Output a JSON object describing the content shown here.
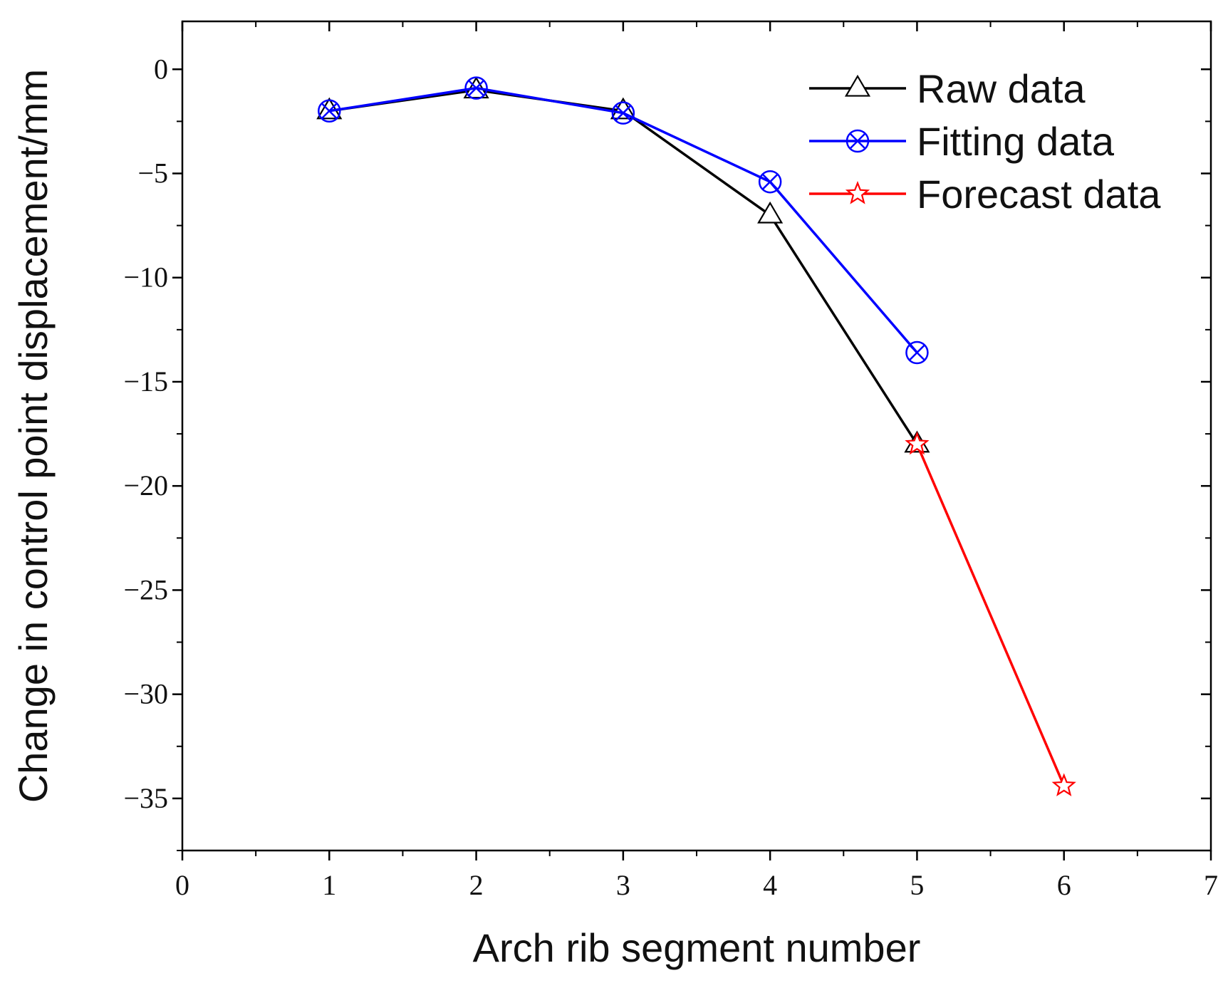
{
  "chart_data": {
    "type": "line",
    "title": "",
    "xlabel": "Arch rib segment number",
    "ylabel": "Change in control point displacement/mm",
    "xlim": [
      0,
      7
    ],
    "ylim": [
      -37.5,
      2.3
    ],
    "xticks": [
      0,
      1,
      2,
      3,
      4,
      5,
      6,
      7
    ],
    "yticks": [
      0,
      -5,
      -10,
      -15,
      -20,
      -25,
      -30,
      -35
    ],
    "ytick_labels": [
      "0",
      "−5",
      "−10",
      "−15",
      "−20",
      "−25",
      "−30",
      "−35"
    ],
    "grid": false,
    "legend_position": "top-right",
    "series": [
      {
        "name": "Raw data",
        "color": "#000000",
        "marker": "triangle",
        "x": [
          1,
          2,
          3,
          4,
          5
        ],
        "y": [
          -2.0,
          -1.0,
          -2.0,
          -7.0,
          -18.0
        ]
      },
      {
        "name": "Fitting data",
        "color": "#0000ff",
        "marker": "circle-x",
        "x": [
          1,
          2,
          3,
          4,
          5
        ],
        "y": [
          -2.0,
          -0.9,
          -2.1,
          -5.4,
          -13.6
        ]
      },
      {
        "name": "Forecast data",
        "color": "#ff0000",
        "marker": "star",
        "x": [
          5,
          6
        ],
        "y": [
          -18.0,
          -34.4
        ]
      }
    ]
  }
}
